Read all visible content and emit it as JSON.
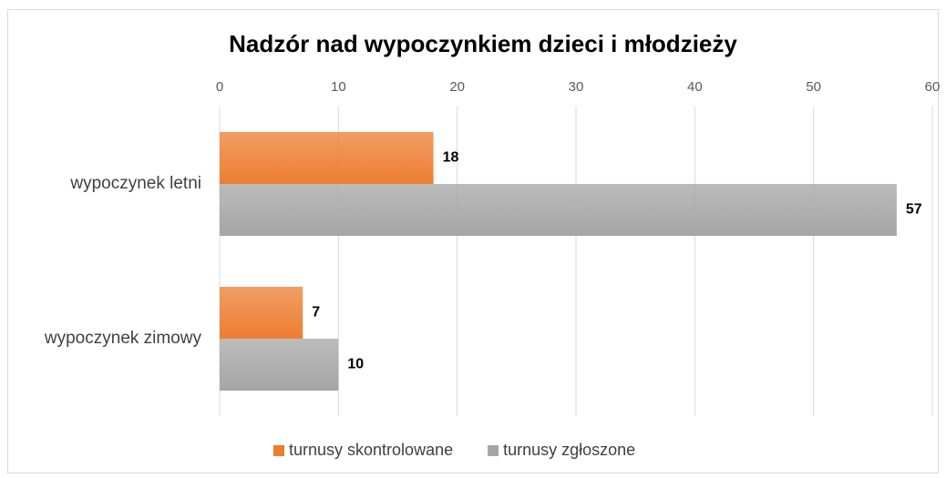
{
  "chart_data": {
    "type": "bar",
    "orientation": "horizontal",
    "title": "Nadzór nad wypoczynkiem dzieci i młodzieży",
    "categories": [
      "wypoczynek letni",
      "wypoczynek zimowy"
    ],
    "series": [
      {
        "name": "turnusy skontrolowane",
        "color": "#ed7d31",
        "values": [
          18,
          7
        ]
      },
      {
        "name": "turnusy zgłoszone",
        "color": "#a5a5a5",
        "values": [
          57,
          10
        ]
      }
    ],
    "xlim": [
      0,
      60
    ],
    "xticks": [
      0,
      10,
      20,
      30,
      40,
      50,
      60
    ],
    "grid": true,
    "legend": "bottom"
  }
}
